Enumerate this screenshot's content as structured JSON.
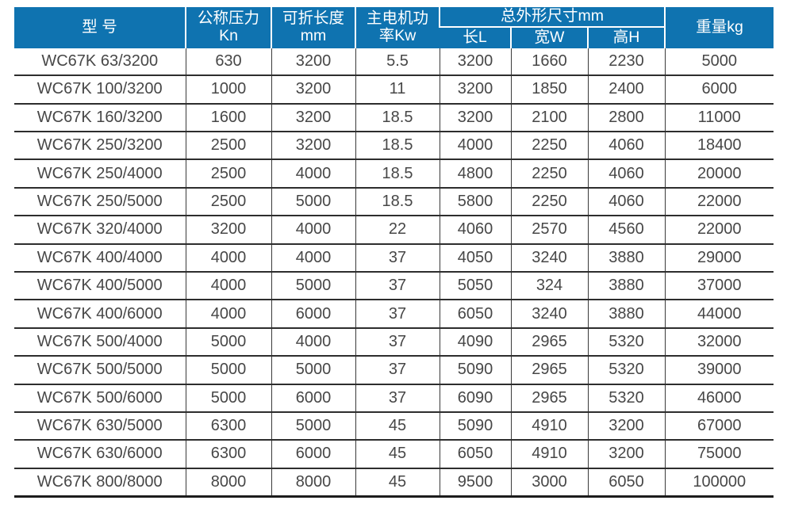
{
  "colors": {
    "header_bg": "#0f73b0",
    "header_text": "#ffffff",
    "grid_line": "#3a3a3a",
    "row_line": "#2d2d2d",
    "outer_line": "#1c1c1c",
    "body_text": "#474747",
    "page_bg": "#ffffff"
  },
  "table": {
    "header": {
      "model": "型 号",
      "nominal_pressure": [
        "公称压力",
        "Kn"
      ],
      "fold_length": [
        "可折长度",
        "mm"
      ],
      "motor_power": [
        "主电机功",
        "率Kw"
      ],
      "overall_dimensions": "总外形尺寸mm",
      "dim_length": "长L",
      "dim_width": "宽W",
      "dim_height": "高H",
      "weight": "重量kg"
    },
    "rows": [
      [
        "WC67K 63/3200",
        "630",
        "3200",
        "5.5",
        "3200",
        "1660",
        "2230",
        "5000"
      ],
      [
        "WC67K 100/3200",
        "1000",
        "3200",
        "11",
        "3200",
        "1850",
        "2400",
        "6000"
      ],
      [
        "WC67K 160/3200",
        "1600",
        "3200",
        "18.5",
        "3200",
        "2100",
        "2800",
        "11000"
      ],
      [
        "WC67K 250/3200",
        "2500",
        "3200",
        "18.5",
        "4000",
        "2250",
        "4060",
        "18400"
      ],
      [
        "WC67K 250/4000",
        "2500",
        "4000",
        "18.5",
        "4800",
        "2250",
        "4060",
        "20000"
      ],
      [
        "WC67K 250/5000",
        "2500",
        "5000",
        "18.5",
        "5800",
        "2250",
        "4060",
        "22000"
      ],
      [
        "WC67K 320/4000",
        "3200",
        "4000",
        "22",
        "4060",
        "2570",
        "4560",
        "22000"
      ],
      [
        "WC67K 400/4000",
        "4000",
        "4000",
        "37",
        "4050",
        "3240",
        "3880",
        "29000"
      ],
      [
        "WC67K 400/5000",
        "4000",
        "5000",
        "37",
        "5050",
        "324",
        "3880",
        "37000"
      ],
      [
        "WC67K 400/6000",
        "4000",
        "6000",
        "37",
        "6050",
        "3240",
        "3880",
        "44000"
      ],
      [
        "WC67K 500/4000",
        "5000",
        "4000",
        "37",
        "4090",
        "2965",
        "5320",
        "32000"
      ],
      [
        "WC67K 500/5000",
        "5000",
        "5000",
        "37",
        "5090",
        "2965",
        "5320",
        "39000"
      ],
      [
        "WC67K 500/6000",
        "5000",
        "6000",
        "37",
        "6090",
        "2965",
        "5320",
        "46000"
      ],
      [
        "WC67K 630/5000",
        "6300",
        "5000",
        "45",
        "5090",
        "4910",
        "3200",
        "67000"
      ],
      [
        "WC67K 630/6000",
        "6300",
        "6000",
        "45",
        "6050",
        "4910",
        "3200",
        "75000"
      ],
      [
        "WC67K 800/8000",
        "8000",
        "8000",
        "45",
        "9500",
        "3000",
        "6050",
        "100000"
      ]
    ]
  }
}
